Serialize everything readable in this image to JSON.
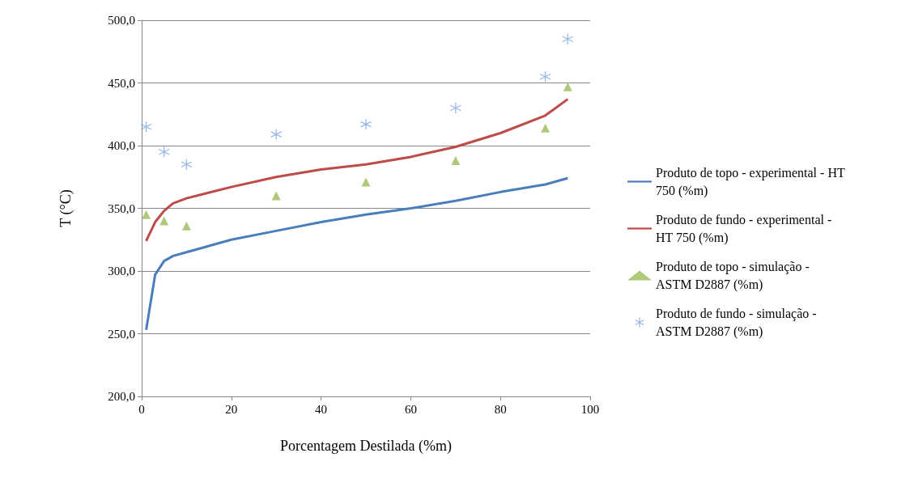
{
  "chart_data": {
    "type": "line",
    "xlabel": "Porcentagem Destilada (%m)",
    "ylabel": "T (°C)",
    "xlim": [
      0,
      100
    ],
    "xticks": [
      0,
      20,
      40,
      60,
      80,
      100
    ],
    "ylim": [
      200,
      500
    ],
    "yticks": [
      {
        "value": 200,
        "label": "200,0"
      },
      {
        "value": 250,
        "label": "250,0"
      },
      {
        "value": 300,
        "label": "300,0"
      },
      {
        "value": 350,
        "label": "350,0"
      },
      {
        "value": 400,
        "label": "400,0"
      },
      {
        "value": 450,
        "label": "450,0"
      },
      {
        "value": 500,
        "label": "500,0"
      }
    ],
    "grid": "y",
    "legend": "right",
    "series": [
      {
        "name": "Produto de topo - experimental - HT 750 (%m)",
        "marker": "none",
        "color": "#4a7ebb",
        "x": [
          1,
          3,
          5,
          7,
          10,
          20,
          30,
          40,
          50,
          60,
          70,
          80,
          90,
          95
        ],
        "values": [
          253,
          297,
          308,
          312,
          315,
          325,
          332,
          339,
          345,
          350,
          356,
          363,
          369,
          374
        ]
      },
      {
        "name": "Produto de fundo - experimental - HT 750 (%m)",
        "marker": "none",
        "color": "#be4b48",
        "x": [
          1,
          3,
          5,
          7,
          10,
          20,
          30,
          40,
          50,
          60,
          70,
          80,
          90,
          95
        ],
        "values": [
          324,
          339,
          348,
          354,
          358,
          367,
          375,
          381,
          385,
          391,
          399,
          410,
          424,
          437
        ]
      },
      {
        "name": "Produto de topo - simulação - ASTM D2887 (%m)",
        "type": "scatter",
        "marker": "triangle",
        "color": "#9bbb59",
        "x": [
          1,
          5,
          10,
          30,
          50,
          70,
          90,
          95
        ],
        "values": [
          345,
          340,
          336,
          360,
          371,
          388,
          414,
          447
        ]
      },
      {
        "name": "Produto de fundo - simulação - ASTM D2887 (%m)",
        "type": "scatter",
        "marker": "cross",
        "color": "#7ea6e0",
        "x": [
          1,
          5,
          10,
          30,
          50,
          70,
          90,
          95
        ],
        "values": [
          415,
          395,
          385,
          409,
          417,
          430,
          455,
          485
        ]
      }
    ]
  }
}
